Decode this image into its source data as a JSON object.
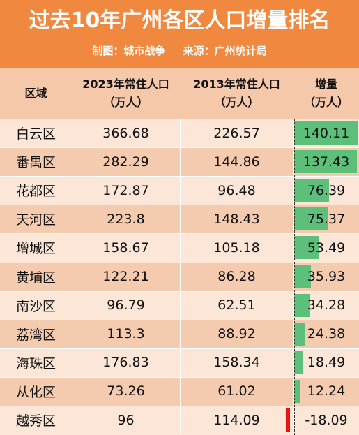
{
  "title": "过去10年广州各区人口增量排名",
  "subtitle": {
    "maker": "制图：城市战争",
    "source": "来源：广州统计局"
  },
  "headers": {
    "district": "区域",
    "pop2023": [
      "2023年常住人口",
      "（万人）"
    ],
    "pop2013": [
      "2013年常住人口",
      "（万人）"
    ],
    "increase": [
      "增量",
      "（万人）"
    ]
  },
  "colors": {
    "header_bg": "#f0893f",
    "positive_bar": "#5cbf7a",
    "negative_bar": "#e81313"
  },
  "rows": [
    {
      "district": "白云区",
      "pop2023": "366.68",
      "pop2013": "226.57",
      "increase": "140.11"
    },
    {
      "district": "番禺区",
      "pop2023": "282.29",
      "pop2013": "144.86",
      "increase": "137.43"
    },
    {
      "district": "花都区",
      "pop2023": "172.87",
      "pop2013": "96.48",
      "increase": "76.39"
    },
    {
      "district": "天河区",
      "pop2023": "223.8",
      "pop2013": "148.43",
      "increase": "75.37"
    },
    {
      "district": "增城区",
      "pop2023": "158.67",
      "pop2013": "105.18",
      "increase": "53.49"
    },
    {
      "district": "黄埔区",
      "pop2023": "122.21",
      "pop2013": "86.28",
      "increase": "35.93"
    },
    {
      "district": "南沙区",
      "pop2023": "96.79",
      "pop2013": "62.51",
      "increase": "34.28"
    },
    {
      "district": "荔湾区",
      "pop2023": "113.3",
      "pop2013": "88.92",
      "increase": "24.38"
    },
    {
      "district": "海珠区",
      "pop2023": "176.83",
      "pop2013": "158.34",
      "increase": "18.49"
    },
    {
      "district": "从化区",
      "pop2023": "73.26",
      "pop2013": "61.02",
      "increase": "12.24"
    },
    {
      "district": "越秀区",
      "pop2023": "96",
      "pop2013": "114.09",
      "increase": "-18.09"
    }
  ],
  "chart_data": {
    "type": "table",
    "title": "过去10年广州各区人口增量排名",
    "columns": [
      "区域",
      "2023年常住人口（万人）",
      "2013年常住人口（万人）",
      "增量（万人）"
    ],
    "categories": [
      "白云区",
      "番禺区",
      "花都区",
      "天河区",
      "增城区",
      "黄埔区",
      "南沙区",
      "荔湾区",
      "海珠区",
      "从化区",
      "越秀区"
    ],
    "series": [
      {
        "name": "2023年常住人口",
        "values": [
          366.68,
          282.29,
          172.87,
          223.8,
          158.67,
          122.21,
          96.79,
          113.3,
          176.83,
          73.26,
          96
        ]
      },
      {
        "name": "2013年常住人口",
        "values": [
          226.57,
          144.86,
          96.48,
          148.43,
          105.18,
          86.28,
          62.51,
          88.92,
          158.34,
          61.02,
          114.09
        ]
      },
      {
        "name": "增量",
        "values": [
          140.11,
          137.43,
          76.39,
          75.37,
          53.49,
          35.93,
          34.28,
          24.38,
          18.49,
          12.24,
          -18.09
        ]
      }
    ]
  }
}
